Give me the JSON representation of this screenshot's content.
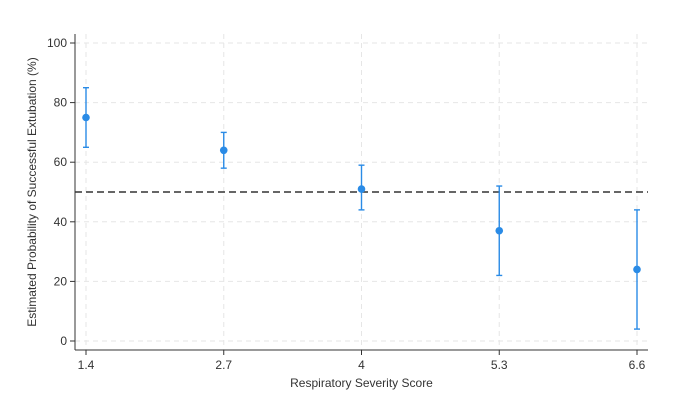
{
  "chart_data": {
    "type": "scatter",
    "title": "",
    "xlabel": "Respiratory Severity Score",
    "ylabel": "Estimated Probability of Successful Extubation (%)",
    "x_ticks": [
      "1.4",
      "2.7",
      "4",
      "5.3",
      "6.6"
    ],
    "y_ticks": [
      "0",
      "20",
      "40",
      "60",
      "80",
      "100"
    ],
    "xlim": [
      1.4,
      6.6
    ],
    "ylim": [
      0,
      100
    ],
    "grid": true,
    "reference_line": {
      "y": 50,
      "style": "dashed",
      "color": "#333333"
    },
    "series": [
      {
        "color": "#2a8be6",
        "points": [
          {
            "x": 1.4,
            "y": 75,
            "ci_low": 65,
            "ci_high": 85
          },
          {
            "x": 2.7,
            "y": 64,
            "ci_low": 58,
            "ci_high": 70
          },
          {
            "x": 4.0,
            "y": 51,
            "ci_low": 44,
            "ci_high": 59
          },
          {
            "x": 5.3,
            "y": 37,
            "ci_low": 22,
            "ci_high": 52
          },
          {
            "x": 6.6,
            "y": 24,
            "ci_low": 4,
            "ci_high": 44
          }
        ]
      }
    ]
  }
}
